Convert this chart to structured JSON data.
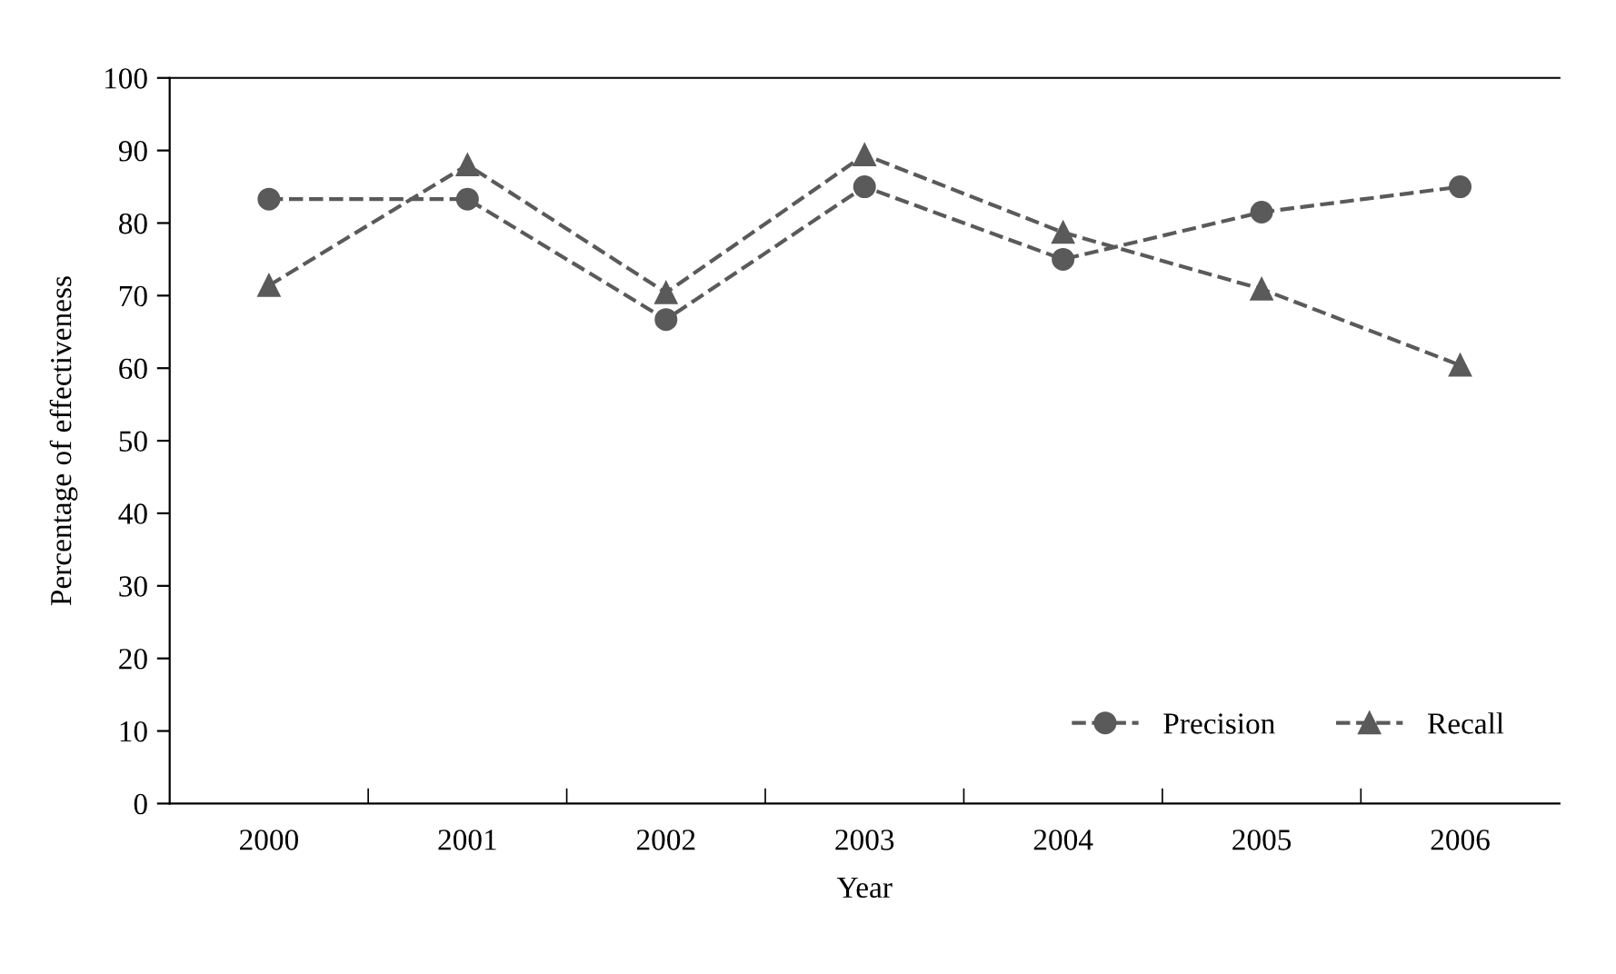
{
  "chart_data": {
    "type": "line",
    "xlabel": "Year",
    "ylabel": "Percentage of effectiveness",
    "categories": [
      "2000",
      "2001",
      "2002",
      "2003",
      "2004",
      "2005",
      "2006"
    ],
    "series": [
      {
        "name": "Precision",
        "color": "#5a5a5a",
        "marker": "circle",
        "values": [
          83.3,
          83.3,
          66.7,
          85,
          75,
          81.5,
          85
        ]
      },
      {
        "name": "Recall",
        "color": "#5a5a5a",
        "marker": "triangle",
        "values": [
          71.4,
          88,
          70.4,
          89.4,
          78.7,
          70.9,
          60.4
        ]
      }
    ],
    "ylim": [
      0,
      100
    ],
    "yticks": [
      0,
      10,
      20,
      30,
      40,
      50,
      60,
      70,
      80,
      90,
      100
    ],
    "line_style": "dashed",
    "grid": false,
    "legend": "bottom right"
  }
}
